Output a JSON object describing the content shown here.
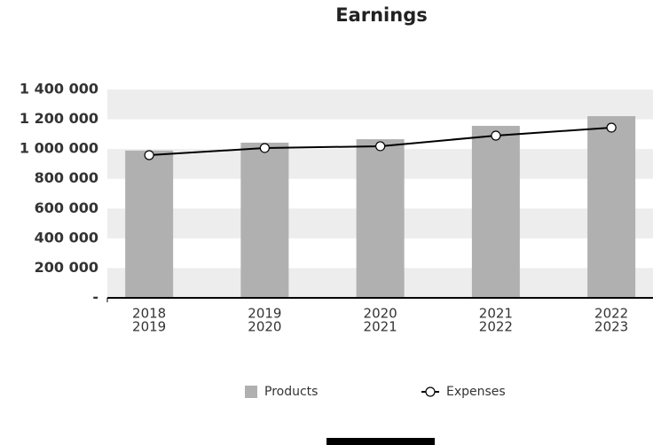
{
  "chart_data": {
    "type": "bar_line",
    "title": "Earnings",
    "categories": [
      [
        "2018",
        "2019"
      ],
      [
        "2019",
        "2020"
      ],
      [
        "2020",
        "2021"
      ],
      [
        "2021",
        "2022"
      ],
      [
        "2022",
        "2023"
      ]
    ],
    "series": [
      {
        "name": "Products",
        "type": "bar",
        "color": "#b0b0b0",
        "values": [
          990000,
          1043000,
          1066000,
          1156000,
          1221000
        ]
      },
      {
        "name": "Expenses",
        "type": "line",
        "color": "#000000",
        "values": [
          959000,
          1007000,
          1019000,
          1090000,
          1144000
        ]
      }
    ],
    "ylim": [
      0,
      1400000
    ],
    "yticks": [
      {
        "value": 0,
        "label": "-"
      },
      {
        "value": 200000,
        "label": "200 000"
      },
      {
        "value": 400000,
        "label": "400 000"
      },
      {
        "value": 600000,
        "label": "600 000"
      },
      {
        "value": 800000,
        "label": "800 000"
      },
      {
        "value": 1000000,
        "label": "1 000 000"
      },
      {
        "value": 1200000,
        "label": "1 200 000"
      },
      {
        "value": 1400000,
        "label": "1 400 000"
      }
    ],
    "grid": "bands",
    "legend": "bottom"
  }
}
